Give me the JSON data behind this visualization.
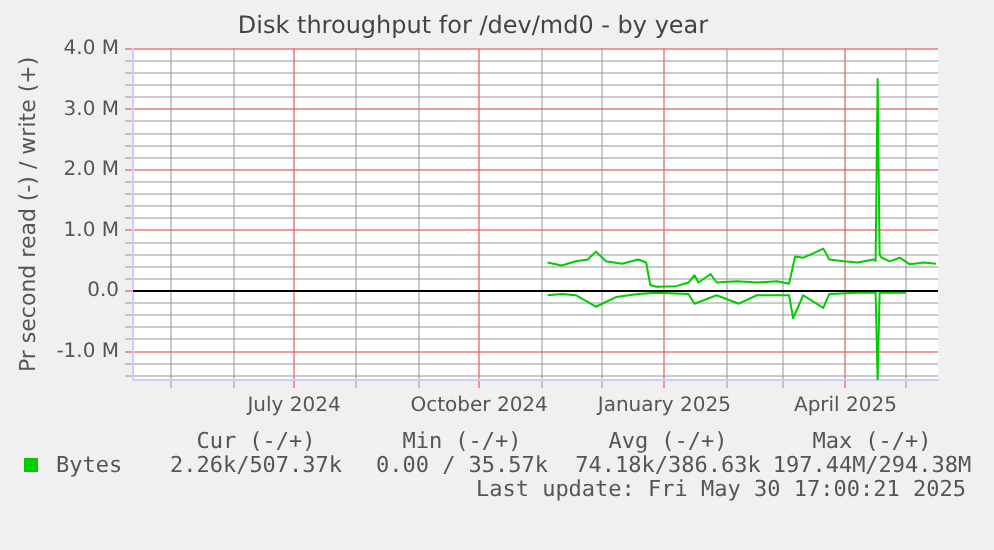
{
  "chart_data": {
    "type": "line",
    "title": "Disk throughput for /dev/md0 - by year",
    "ylabel": "Pr second read (-) / write (+)",
    "series": [
      {
        "name": "Bytes",
        "color": "#00cc00",
        "x": [
          "2024-11-04",
          "2024-11-11",
          "2024-11-18",
          "2024-11-24",
          "2024-11-28",
          "2024-12-03",
          "2024-12-11",
          "2024-12-19",
          "2024-12-23",
          "2024-12-25",
          "2024-12-28",
          "2025-01-07",
          "2025-01-13",
          "2025-01-16",
          "2025-01-18",
          "2025-01-24",
          "2025-01-27",
          "2025-02-06",
          "2025-02-16",
          "2025-02-26",
          "2025-03-04",
          "2025-03-07",
          "2025-03-11",
          "2025-03-16",
          "2025-03-21",
          "2025-03-24",
          "2025-03-31",
          "2025-04-07",
          "2025-04-15",
          "2025-04-16",
          "2025-04-17",
          "2025-04-18",
          "2025-04-19",
          "2025-04-23",
          "2025-04-28",
          "2025-05-03",
          "2025-05-10",
          "2025-05-16"
        ],
        "values": [
          0.47,
          0.42,
          0.49,
          0.52,
          0.65,
          0.49,
          0.45,
          0.52,
          0.47,
          0.1,
          0.07,
          0.08,
          0.14,
          0.26,
          0.14,
          0.28,
          0.14,
          0.16,
          0.14,
          0.16,
          0.12,
          0.57,
          0.55,
          0.62,
          0.7,
          0.52,
          0.49,
          0.47,
          0.52,
          0.5,
          3.5,
          0.6,
          0.55,
          0.49,
          0.55,
          0.44,
          0.47,
          0.45
        ]
      },
      {
        "color": "#00cc00",
        "x": [
          "2024-11-04",
          "2024-11-11",
          "2024-11-18",
          "2024-11-28",
          "2024-12-08",
          "2024-12-19",
          "2024-12-28",
          "2025-01-13",
          "2025-01-16",
          "2025-01-27",
          "2025-02-07",
          "2025-02-16",
          "2025-03-04",
          "2025-03-06",
          "2025-03-11",
          "2025-03-21",
          "2025-03-24",
          "2025-04-07",
          "2025-04-16",
          "2025-04-17",
          "2025-04-18",
          "2025-05-01"
        ],
        "values": [
          -0.07,
          -0.05,
          -0.07,
          -0.26,
          -0.1,
          -0.05,
          -0.03,
          -0.05,
          -0.21,
          -0.07,
          -0.21,
          -0.07,
          -0.07,
          -0.45,
          -0.07,
          -0.28,
          -0.05,
          -0.03,
          -0.03,
          -1.46,
          -0.03,
          -0.03
        ]
      }
    ],
    "xlim": [
      "2024-04-12",
      "2025-05-17"
    ],
    "xticks": [
      {
        "value": "2024-05-01",
        "label": null
      },
      {
        "value": "2024-06-01",
        "label": null
      },
      {
        "value": "2024-07-01",
        "label": "July 2024"
      },
      {
        "value": "2024-08-01",
        "label": null
      },
      {
        "value": "2024-09-01",
        "label": null
      },
      {
        "value": "2024-10-01",
        "label": "October 2024"
      },
      {
        "value": "2024-11-01",
        "label": null
      },
      {
        "value": "2024-12-01",
        "label": null
      },
      {
        "value": "2025-01-01",
        "label": "January 2025"
      },
      {
        "value": "2025-02-01",
        "label": null
      },
      {
        "value": "2025-03-01",
        "label": null
      },
      {
        "value": "2025-04-01",
        "label": "April 2025"
      },
      {
        "value": "2025-05-01",
        "label": null
      }
    ],
    "ylim": [
      -1.47,
      4.0
    ],
    "yticks": [
      {
        "value": -1.4,
        "label": null
      },
      {
        "value": -1.2,
        "label": null
      },
      {
        "value": -1,
        "label": "-1.0 M"
      },
      {
        "value": -0.8,
        "label": null
      },
      {
        "value": -0.6,
        "label": null
      },
      {
        "value": -0.4,
        "label": null
      },
      {
        "value": -0.2,
        "label": null
      },
      {
        "value": 0,
        "label": "0.0"
      },
      {
        "value": 0.2,
        "label": null
      },
      {
        "value": 0.4,
        "label": null
      },
      {
        "value": 0.6,
        "label": null
      },
      {
        "value": 0.8,
        "label": null
      },
      {
        "value": 1,
        "label": "1.0 M"
      },
      {
        "value": 1.2,
        "label": null
      },
      {
        "value": 1.4,
        "label": null
      },
      {
        "value": 1.6,
        "label": null
      },
      {
        "value": 1.8,
        "label": null
      },
      {
        "value": 2,
        "label": "2.0 M"
      },
      {
        "value": 2.2,
        "label": null
      },
      {
        "value": 2.4,
        "label": null
      },
      {
        "value": 2.6,
        "label": null
      },
      {
        "value": 2.8,
        "label": null
      },
      {
        "value": 3,
        "label": "3.0 M"
      },
      {
        "value": 3.2,
        "label": null
      },
      {
        "value": 3.4,
        "label": null
      },
      {
        "value": 3.6,
        "label": null
      },
      {
        "value": 3.8,
        "label": null
      },
      {
        "value": 4,
        "label": "4.0 M"
      }
    ],
    "ref_lines": [
      {
        "axis": "y",
        "value": 0,
        "color": "#000000"
      }
    ],
    "grid": true,
    "legend": "bottom",
    "marker": "none",
    "line_style": "solid",
    "annotations": [
      "Cur (-/+)",
      "Min (-/+)",
      "Avg (-/+)",
      "Max (-/+)",
      "2.26k/507.37k",
      "0.00 / 35.57k",
      "74.18k/386.63k",
      "197.44M/294.38M",
      "Last update: Fri May 30 17:00:21 2025"
    ]
  }
}
